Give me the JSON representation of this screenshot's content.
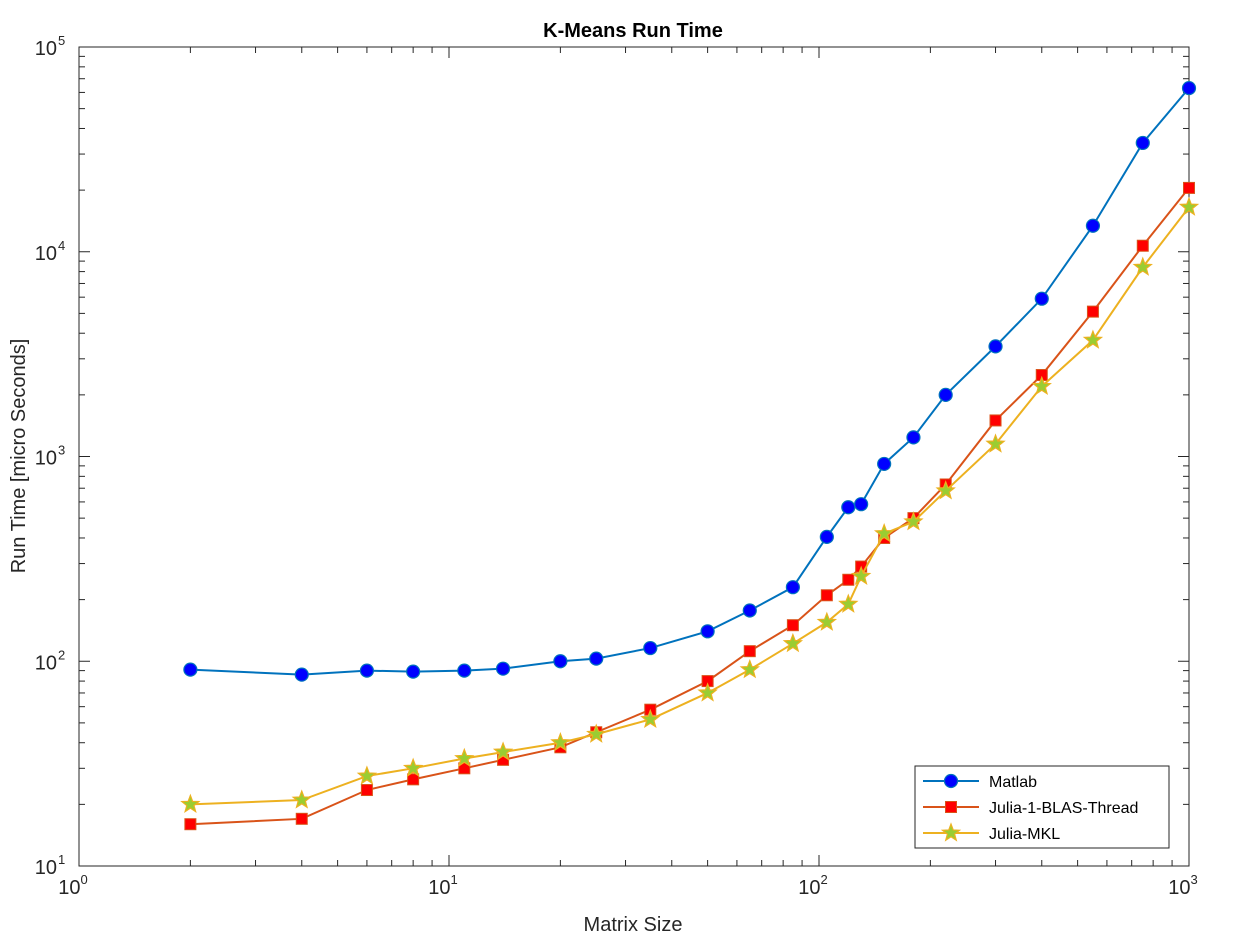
{
  "chart_data": {
    "type": "line",
    "title": "K-Means Run Time",
    "xlabel": "Matrix Size",
    "ylabel": "Run Time  [micro Seconds]",
    "xscale": "log",
    "yscale": "log",
    "xlim": [
      1,
      1000
    ],
    "ylim": [
      10,
      100000
    ],
    "grid": false,
    "legend_position": "bottom-right",
    "x_ticks": [
      {
        "value": 1,
        "base": "10",
        "exp": "0"
      },
      {
        "value": 10,
        "base": "10",
        "exp": "1"
      },
      {
        "value": 100,
        "base": "10",
        "exp": "2"
      },
      {
        "value": 1000,
        "base": "10",
        "exp": "3"
      }
    ],
    "y_ticks": [
      {
        "value": 10,
        "base": "10",
        "exp": "1"
      },
      {
        "value": 100,
        "base": "10",
        "exp": "2"
      },
      {
        "value": 1000,
        "base": "10",
        "exp": "3"
      },
      {
        "value": 10000,
        "base": "10",
        "exp": "4"
      },
      {
        "value": 100000,
        "base": "10",
        "exp": "5"
      }
    ],
    "x": [
      2,
      4,
      6,
      8,
      11,
      14,
      20,
      25,
      35,
      50,
      65,
      85,
      105,
      120,
      130,
      150,
      180,
      220,
      300,
      400,
      550,
      750,
      1000
    ],
    "series": [
      {
        "name": "Matlab",
        "color": "#0072BD",
        "marker": "circle",
        "marker_fill": "#0000FF",
        "values": [
          91,
          86,
          90,
          89,
          90,
          92,
          100,
          103,
          116,
          140,
          177,
          230,
          405,
          565,
          585,
          920,
          1240,
          2000,
          3450,
          5900,
          13400,
          34000,
          63000
        ]
      },
      {
        "name": "Julia-1-BLAS-Thread",
        "color": "#D95319",
        "marker": "square",
        "marker_fill": "#FF0000",
        "values": [
          16,
          17,
          23.5,
          26.5,
          30,
          33,
          38,
          45,
          58,
          80,
          112,
          150,
          210,
          250,
          290,
          400,
          500,
          730,
          1500,
          2500,
          5100,
          10700,
          20500
        ]
      },
      {
        "name": "Julia-MKL",
        "color": "#EDB120",
        "marker": "star",
        "marker_fill": "#9ACD32",
        "values": [
          20,
          21,
          27.5,
          30,
          33.5,
          36,
          40,
          44,
          52,
          70,
          91,
          122,
          155,
          190,
          260,
          420,
          480,
          680,
          1150,
          2200,
          3700,
          8400,
          16500
        ]
      }
    ]
  }
}
